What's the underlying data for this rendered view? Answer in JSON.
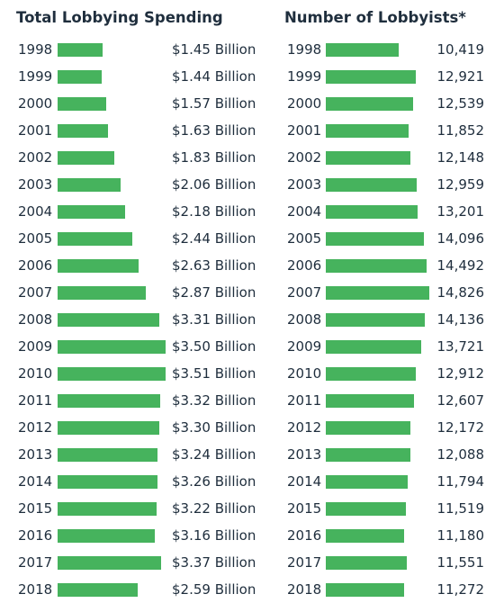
{
  "chart_data": [
    {
      "type": "bar",
      "orientation": "horizontal",
      "title": "Total Lobbying Spending",
      "categories": [
        "1998",
        "1999",
        "2000",
        "2001",
        "2002",
        "2003",
        "2004",
        "2005",
        "2006",
        "2007",
        "2008",
        "2009",
        "2010",
        "2011",
        "2012",
        "2013",
        "2014",
        "2015",
        "2016",
        "2017",
        "2018"
      ],
      "values": [
        1.45,
        1.44,
        1.57,
        1.63,
        1.83,
        2.06,
        2.18,
        2.44,
        2.63,
        2.87,
        3.31,
        3.5,
        3.51,
        3.32,
        3.3,
        3.24,
        3.26,
        3.22,
        3.16,
        3.37,
        2.59
      ],
      "labels": [
        "$1.45 Billion",
        "$1.44 Billion",
        "$1.57 Billion",
        "$1.63 Billion",
        "$1.83 Billion",
        "$2.06 Billion",
        "$2.18 Billion",
        "$2.44 Billion",
        "$2.63 Billion",
        "$2.87 Billion",
        "$3.31 Billion",
        "$3.50 Billion",
        "$3.51 Billion",
        "$3.32 Billion",
        "$3.30 Billion",
        "$3.24 Billion",
        "$3.26 Billion",
        "$3.22 Billion",
        "$3.16 Billion",
        "$3.37 Billion",
        "$2.59 Billion"
      ],
      "xlim": [
        0,
        3.51
      ],
      "color": "#46b35d",
      "grid": false
    },
    {
      "type": "bar",
      "orientation": "horizontal",
      "title": "Number of Lobbyists*",
      "categories": [
        "1998",
        "1999",
        "2000",
        "2001",
        "2002",
        "2003",
        "2004",
        "2005",
        "2006",
        "2007",
        "2008",
        "2009",
        "2010",
        "2011",
        "2012",
        "2013",
        "2014",
        "2015",
        "2016",
        "2017",
        "2018"
      ],
      "values": [
        10419,
        12921,
        12539,
        11852,
        12148,
        12959,
        13201,
        14096,
        14492,
        14826,
        14136,
        13721,
        12912,
        12607,
        12172,
        12088,
        11794,
        11519,
        11180,
        11551,
        11272
      ],
      "labels": [
        "10,419",
        "12,921",
        "12,539",
        "11,852",
        "12,148",
        "12,959",
        "13,201",
        "14,096",
        "14,492",
        "14,826",
        "14,136",
        "13,721",
        "12,912",
        "12,607",
        "12,172",
        "12,088",
        "11,794",
        "11,519",
        "11,180",
        "11,551",
        "11,272"
      ],
      "xlim": [
        0,
        14826
      ],
      "color": "#46b35d",
      "grid": false
    }
  ]
}
